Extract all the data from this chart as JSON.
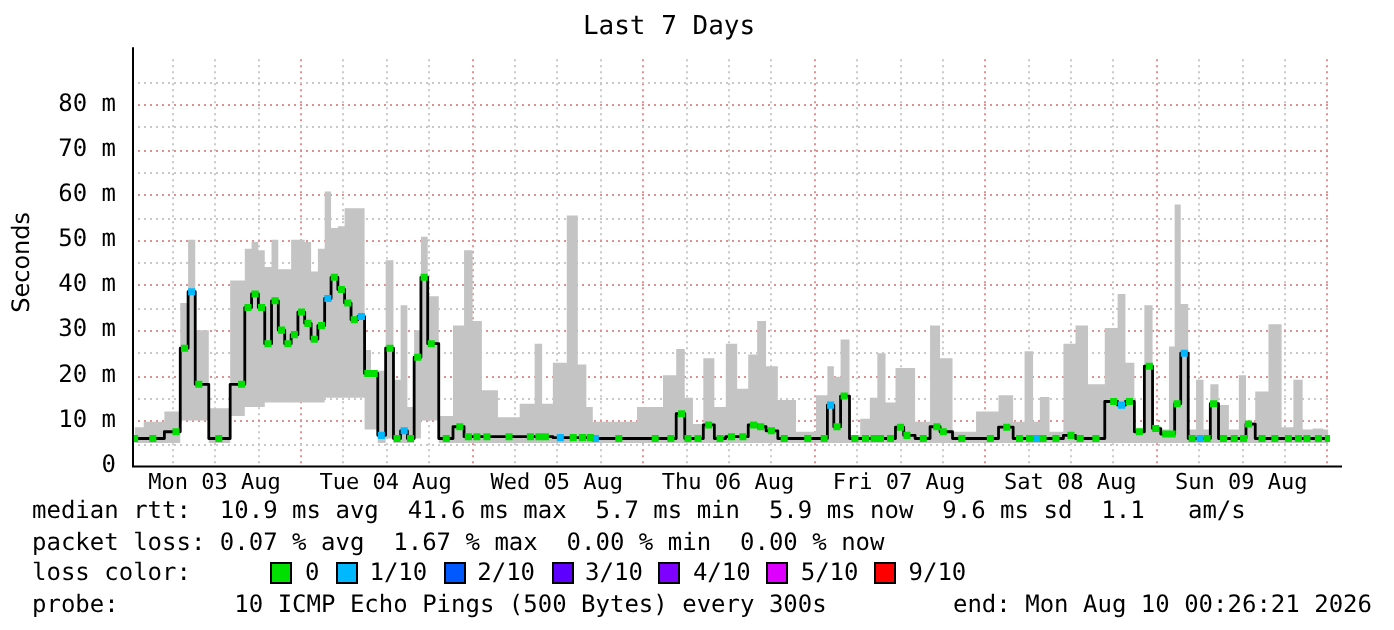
{
  "chart_data": {
    "type": "step",
    "title": "Last 7 Days",
    "ylabel": "Seconds",
    "legend_title": "loss color:",
    "legend": "bottom",
    "grid": true,
    "marker": "square",
    "xlim": [
      "2026-08-03T00:26",
      "2026-08-10T00:26"
    ],
    "xticks": [
      {
        "value": "2026-08-03T06:00",
        "label": null
      },
      {
        "value": "2026-08-03T12:00",
        "label": "Mon 03 Aug"
      },
      {
        "value": "2026-08-03T18:00",
        "label": null
      },
      {
        "value": "2026-08-04T00:00",
        "label": null
      },
      {
        "value": "2026-08-04T06:00",
        "label": null
      },
      {
        "value": "2026-08-04T12:00",
        "label": "Tue 04 Aug"
      },
      {
        "value": "2026-08-04T18:00",
        "label": null
      },
      {
        "value": "2026-08-05T00:00",
        "label": null
      },
      {
        "value": "2026-08-05T06:00",
        "label": null
      },
      {
        "value": "2026-08-05T12:00",
        "label": "Wed 05 Aug"
      },
      {
        "value": "2026-08-05T18:00",
        "label": null
      },
      {
        "value": "2026-08-06T00:00",
        "label": null
      },
      {
        "value": "2026-08-06T06:00",
        "label": null
      },
      {
        "value": "2026-08-06T12:00",
        "label": "Thu 06 Aug"
      },
      {
        "value": "2026-08-06T18:00",
        "label": null
      },
      {
        "value": "2026-08-07T00:00",
        "label": null
      },
      {
        "value": "2026-08-07T06:00",
        "label": null
      },
      {
        "value": "2026-08-07T12:00",
        "label": "Fri 07 Aug"
      },
      {
        "value": "2026-08-07T18:00",
        "label": null
      },
      {
        "value": "2026-08-08T00:00",
        "label": null
      },
      {
        "value": "2026-08-08T06:00",
        "label": null
      },
      {
        "value": "2026-08-08T12:00",
        "label": "Sat 08 Aug"
      },
      {
        "value": "2026-08-08T18:00",
        "label": null
      },
      {
        "value": "2026-08-09T00:00",
        "label": null
      },
      {
        "value": "2026-08-09T06:00",
        "label": null
      },
      {
        "value": "2026-08-09T12:00",
        "label": "Sun 09 Aug"
      },
      {
        "value": "2026-08-09T18:00",
        "label": null
      },
      {
        "value": "2026-08-10T00:00",
        "label": null
      }
    ],
    "ylim": [
      0,
      90
    ],
    "yticks": [
      {
        "value": 0,
        "label": "0"
      },
      {
        "value": 5,
        "label": null
      },
      {
        "value": 10,
        "label": "10 m"
      },
      {
        "value": 15,
        "label": null
      },
      {
        "value": 20,
        "label": "20 m"
      },
      {
        "value": 25,
        "label": null
      },
      {
        "value": 30,
        "label": "30 m"
      },
      {
        "value": 35,
        "label": null
      },
      {
        "value": 40,
        "label": "40 m"
      },
      {
        "value": 45,
        "label": null
      },
      {
        "value": 50,
        "label": "50 m"
      },
      {
        "value": 55,
        "label": null
      },
      {
        "value": 60,
        "label": "60 m"
      },
      {
        "value": 65,
        "label": null
      },
      {
        "value": 70,
        "label": "70 m"
      },
      {
        "value": 75,
        "label": null
      },
      {
        "value": 80,
        "label": "80 m"
      },
      {
        "value": 85,
        "label": null
      }
    ],
    "x": [
      "2026-08-03T00:48",
      "2026-08-03T03:21",
      "2026-08-03T06:36",
      "2026-08-03T07:48",
      "2026-08-03T08:48",
      "2026-08-03T09:48",
      "2026-08-03T12:36",
      "2026-08-03T15:48",
      "2026-08-03T16:42",
      "2026-08-03T17:42",
      "2026-08-03T18:36",
      "2026-08-03T19:30",
      "2026-08-03T20:30",
      "2026-08-03T21:24",
      "2026-08-03T22:18",
      "2026-08-03T23:12",
      "2026-08-04T00:12",
      "2026-08-04T01:06",
      "2026-08-04T02:00",
      "2026-08-04T03:00",
      "2026-08-04T03:54",
      "2026-08-04T04:48",
      "2026-08-04T05:48",
      "2026-08-04T06:42",
      "2026-08-04T07:36",
      "2026-08-04T08:36",
      "2026-08-04T09:30",
      "2026-08-04T10:24",
      "2026-08-04T11:24",
      "2026-08-04T12:36",
      "2026-08-04T13:36",
      "2026-08-04T14:36",
      "2026-08-04T15:30",
      "2026-08-04T16:30",
      "2026-08-04T17:24",
      "2026-08-04T18:24",
      "2026-08-04T20:30",
      "2026-08-04T22:24",
      "2026-08-04T23:36",
      "2026-08-05T00:48",
      "2026-08-05T02:12",
      "2026-08-05T05:18",
      "2026-08-05T08:18",
      "2026-08-05T09:30",
      "2026-08-05T10:24",
      "2026-08-05T12:30",
      "2026-08-05T14:18",
      "2026-08-05T15:36",
      "2026-08-05T16:42",
      "2026-08-05T17:24",
      "2026-08-05T20:42",
      "2026-08-06T01:48",
      "2026-08-06T04:00",
      "2026-08-06T05:30",
      "2026-08-06T06:24",
      "2026-08-06T07:48",
      "2026-08-06T09:18",
      "2026-08-06T10:54",
      "2026-08-06T12:30",
      "2026-08-06T14:06",
      "2026-08-06T15:36",
      "2026-08-06T16:36",
      "2026-08-06T18:06",
      "2026-08-06T19:54",
      "2026-08-06T23:12",
      "2026-08-07T01:30",
      "2026-08-07T02:24",
      "2026-08-07T03:18",
      "2026-08-07T04:18",
      "2026-08-07T05:48",
      "2026-08-07T07:18",
      "2026-08-07T08:30",
      "2026-08-07T09:24",
      "2026-08-07T10:48",
      "2026-08-07T12:12",
      "2026-08-07T13:06",
      "2026-08-07T15:24",
      "2026-08-07T17:18",
      "2026-08-07T18:12",
      "2026-08-07T20:48",
      "2026-08-08T00:48",
      "2026-08-08T03:06",
      "2026-08-08T04:54",
      "2026-08-08T06:18",
      "2026-08-08T07:18",
      "2026-08-08T08:12",
      "2026-08-08T10:00",
      "2026-08-08T12:06",
      "2026-08-08T13:24",
      "2026-08-08T15:36",
      "2026-08-08T18:06",
      "2026-08-08T19:12",
      "2026-08-08T20:18",
      "2026-08-08T21:42",
      "2026-08-08T23:06",
      "2026-08-09T00:00",
      "2026-08-09T01:24",
      "2026-08-09T02:18",
      "2026-08-09T03:00",
      "2026-08-09T04:00",
      "2026-08-09T05:06",
      "2026-08-09T06:12",
      "2026-08-09T07:12",
      "2026-08-09T08:06",
      "2026-08-09T09:30",
      "2026-08-09T11:00",
      "2026-08-09T12:18",
      "2026-08-09T13:00",
      "2026-08-09T14:54",
      "2026-08-09T16:42",
      "2026-08-09T18:36",
      "2026-08-09T20:00",
      "2026-08-09T21:12",
      "2026-08-09T22:48",
      "2026-08-10T00:12"
    ],
    "series": [
      {
        "color": "#000000",
        "marker": "none",
        "values": [
          6,
          6,
          7.5,
          26,
          38.5,
          18,
          6,
          18,
          35,
          38,
          35,
          27,
          36.5,
          30,
          27,
          29,
          34,
          31.5,
          28,
          31,
          37,
          41.7,
          39,
          36,
          32.3,
          33,
          20.4,
          20.4,
          6.7,
          26,
          6,
          7.7,
          6,
          24,
          41.7,
          27,
          6,
          8.6,
          6.4,
          6.4,
          6.4,
          6.4,
          6.4,
          6.4,
          6.4,
          6.2,
          6.2,
          6.2,
          6.2,
          6,
          6,
          6,
          6,
          11.5,
          6,
          6,
          9,
          6,
          6.4,
          6.4,
          9,
          8.6,
          7.7,
          6,
          6,
          6,
          13.4,
          8.6,
          15.4,
          6,
          6,
          6,
          6,
          6,
          8.5,
          6.7,
          6,
          8.6,
          7.5,
          6,
          6,
          8.5,
          6,
          6,
          6,
          6,
          6,
          6.7,
          6,
          6,
          14.2,
          13.4,
          14.2,
          7.5,
          22,
          8.2,
          7,
          7,
          13.7,
          24.9,
          6,
          6,
          6,
          13.7,
          6,
          6,
          6,
          9.2,
          6,
          6,
          6,
          6,
          6,
          6,
          6
        ],
        "lower": [
          5,
          5,
          5,
          10,
          10,
          10,
          5,
          11,
          13,
          13,
          13,
          14,
          14,
          14,
          14,
          14,
          14,
          14,
          14,
          14,
          15,
          15,
          15,
          15,
          15,
          15,
          8,
          8,
          5,
          6,
          5,
          5,
          5,
          6,
          10,
          10,
          5,
          5,
          5,
          5,
          5,
          5,
          5,
          5,
          5,
          5,
          5,
          5,
          5,
          5,
          5,
          5,
          5,
          5,
          5,
          5,
          5,
          5,
          5,
          5,
          5,
          5,
          5,
          5,
          5,
          5,
          5,
          5,
          5,
          5,
          5,
          5,
          5,
          5,
          5,
          5,
          5,
          5,
          5,
          5,
          5,
          5,
          5,
          5,
          5,
          5,
          5,
          5,
          5,
          5,
          5,
          5,
          5,
          5,
          5,
          5,
          5,
          5,
          5,
          5,
          5,
          5,
          5,
          5,
          5,
          5,
          5,
          5,
          5,
          5,
          5,
          5,
          5,
          5,
          5
        ],
        "upper": [
          8.5,
          9.7,
          12,
          36,
          50,
          30,
          12.7,
          41,
          48,
          49.5,
          47.7,
          44,
          50,
          43.5,
          43.5,
          50,
          50,
          49.5,
          43,
          48,
          60.7,
          52.6,
          53,
          57,
          57,
          57,
          25.6,
          21,
          21,
          45.5,
          19,
          35.5,
          13,
          30,
          50.7,
          37.5,
          11,
          31,
          47.7,
          32,
          16.7,
          10.7,
          13.7,
          27,
          13.7,
          22.8,
          55.4,
          22.4,
          13,
          9.7,
          9.7,
          13,
          20,
          25.8,
          15,
          9.2,
          23.8,
          13,
          27,
          17,
          24.6,
          32,
          22,
          14.5,
          7.5,
          15.6,
          22,
          19.7,
          27.9,
          6.7,
          10.4,
          15,
          24.9,
          14,
          21.6,
          21.6,
          9.7,
          31,
          23.8,
          7.5,
          12,
          15.6,
          9.7,
          25.3,
          9.7,
          15.2,
          7.5,
          27,
          31,
          18,
          30.5,
          38,
          22.8,
          8.2,
          35.5,
          8.7,
          8,
          26.4,
          57.8,
          35.8,
          8,
          19,
          8,
          18,
          13.4,
          8,
          20,
          9.7,
          16.4,
          31.3,
          8.5,
          19,
          8,
          8.2,
          8
        ]
      },
      {
        "type": "scatter",
        "name": "0",
        "color": "#00e000",
        "values": [
          6,
          6,
          7.5,
          26,
          null,
          18,
          6,
          18,
          35,
          38,
          35,
          27,
          36.5,
          30,
          27,
          29,
          34,
          31.5,
          28,
          31,
          null,
          41.7,
          39,
          36,
          32.3,
          null,
          20.4,
          20.4,
          null,
          26,
          6,
          null,
          6,
          24,
          41.7,
          27,
          6,
          8.6,
          6.4,
          6.4,
          6.4,
          6.4,
          6.4,
          6.4,
          6.4,
          null,
          6.2,
          6.2,
          6.2,
          null,
          6,
          6,
          6,
          11.5,
          6,
          6,
          9,
          6,
          6.4,
          6.4,
          9,
          8.6,
          7.7,
          6,
          6,
          6,
          null,
          8.6,
          15.4,
          6,
          6,
          6,
          6,
          6,
          8.5,
          6.7,
          6,
          8.6,
          7.5,
          6,
          6,
          8.5,
          6,
          6,
          null,
          6,
          6,
          6.7,
          6,
          6,
          14.2,
          null,
          14.2,
          7.5,
          22,
          8.2,
          7,
          7,
          13.7,
          null,
          6,
          null,
          6,
          13.7,
          6,
          6,
          6,
          9.2,
          6,
          6,
          6,
          6,
          6,
          6,
          6
        ]
      },
      {
        "type": "scatter",
        "name": "1/10",
        "color": "#00b8ff",
        "values": [
          null,
          null,
          null,
          null,
          38.5,
          null,
          null,
          null,
          null,
          null,
          null,
          null,
          null,
          null,
          null,
          null,
          null,
          null,
          null,
          null,
          37,
          null,
          null,
          null,
          null,
          33,
          null,
          null,
          6.7,
          null,
          null,
          7.7,
          null,
          null,
          null,
          null,
          null,
          null,
          null,
          null,
          null,
          null,
          null,
          null,
          null,
          6.2,
          null,
          null,
          null,
          6,
          null,
          null,
          null,
          null,
          null,
          null,
          null,
          null,
          null,
          null,
          null,
          null,
          null,
          null,
          null,
          null,
          13.4,
          null,
          null,
          null,
          null,
          null,
          null,
          null,
          null,
          null,
          null,
          null,
          null,
          null,
          null,
          null,
          null,
          null,
          6,
          null,
          null,
          null,
          null,
          null,
          null,
          13.4,
          null,
          null,
          null,
          null,
          null,
          null,
          null,
          24.9,
          null,
          6,
          null,
          null,
          null,
          null,
          null,
          null,
          null,
          null,
          null,
          null,
          null,
          null,
          null
        ]
      },
      {
        "type": "scatter",
        "name": "2/10",
        "color": "#0059ff",
        "values": [
          null,
          null,
          null,
          null,
          null,
          null,
          null,
          null,
          null,
          null,
          null,
          null,
          null,
          null,
          null,
          null,
          null,
          null,
          null,
          null,
          null,
          null,
          null,
          null,
          null,
          null,
          null,
          null,
          null,
          null,
          null,
          null,
          null,
          null,
          null,
          null,
          null,
          null,
          null,
          null,
          null,
          null,
          null,
          null,
          null,
          null,
          null,
          null,
          null,
          null,
          null,
          null,
          null,
          null,
          null,
          null,
          null,
          null,
          null,
          null,
          null,
          null,
          null,
          null,
          null,
          null,
          null,
          null,
          null,
          null,
          null,
          null,
          null,
          null,
          null,
          null,
          null,
          null,
          null,
          null,
          null,
          null,
          null,
          null,
          null,
          null,
          null,
          null,
          null,
          null,
          null,
          null,
          null,
          null,
          null,
          null,
          null,
          null,
          null,
          null,
          null,
          null,
          null,
          null,
          null,
          null,
          null,
          null,
          null,
          null,
          null,
          null,
          null,
          null,
          null
        ]
      },
      {
        "type": "scatter",
        "name": "3/10",
        "color": "#5e00ff",
        "values": [
          null,
          null,
          null,
          null,
          null,
          null,
          null,
          null,
          null,
          null,
          null,
          null,
          null,
          null,
          null,
          null,
          null,
          null,
          null,
          null,
          null,
          null,
          null,
          null,
          null,
          null,
          null,
          null,
          null,
          null,
          null,
          null,
          null,
          null,
          null,
          null,
          null,
          null,
          null,
          null,
          null,
          null,
          null,
          null,
          null,
          null,
          null,
          null,
          null,
          null,
          null,
          null,
          null,
          null,
          null,
          null,
          null,
          null,
          null,
          null,
          null,
          null,
          null,
          null,
          null,
          null,
          null,
          null,
          null,
          null,
          null,
          null,
          null,
          null,
          null,
          null,
          null,
          null,
          null,
          null,
          null,
          null,
          null,
          null,
          null,
          null,
          null,
          null,
          null,
          null,
          null,
          null,
          null,
          null,
          null,
          null,
          null,
          null,
          null,
          null,
          null,
          null,
          null,
          null,
          null,
          null,
          null,
          null,
          null,
          null,
          null,
          null,
          null,
          null,
          null
        ]
      },
      {
        "type": "scatter",
        "name": "4/10",
        "color": "#7e00ff",
        "values": [
          null,
          null,
          null,
          null,
          null,
          null,
          null,
          null,
          null,
          null,
          null,
          null,
          null,
          null,
          null,
          null,
          null,
          null,
          null,
          null,
          null,
          null,
          null,
          null,
          null,
          null,
          null,
          null,
          null,
          null,
          null,
          null,
          null,
          null,
          null,
          null,
          null,
          null,
          null,
          null,
          null,
          null,
          null,
          null,
          null,
          null,
          null,
          null,
          null,
          null,
          null,
          null,
          null,
          null,
          null,
          null,
          null,
          null,
          null,
          null,
          null,
          null,
          null,
          null,
          null,
          null,
          null,
          null,
          null,
          null,
          null,
          null,
          null,
          null,
          null,
          null,
          null,
          null,
          null,
          null,
          null,
          null,
          null,
          null,
          null,
          null,
          null,
          null,
          null,
          null,
          null,
          null,
          null,
          null,
          null,
          null,
          null,
          null,
          null,
          null,
          null,
          null,
          null,
          null,
          null,
          null,
          null,
          null,
          null,
          null,
          null,
          null,
          null,
          null,
          null
        ]
      },
      {
        "type": "scatter",
        "name": "5/10",
        "color": "#dd00ff",
        "values": [
          null,
          null,
          null,
          null,
          null,
          null,
          null,
          null,
          null,
          null,
          null,
          null,
          null,
          null,
          null,
          null,
          null,
          null,
          null,
          null,
          null,
          null,
          null,
          null,
          null,
          null,
          null,
          null,
          null,
          null,
          null,
          null,
          null,
          null,
          null,
          null,
          null,
          null,
          null,
          null,
          null,
          null,
          null,
          null,
          null,
          null,
          null,
          null,
          null,
          null,
          null,
          null,
          null,
          null,
          null,
          null,
          null,
          null,
          null,
          null,
          null,
          null,
          null,
          null,
          null,
          null,
          null,
          null,
          null,
          null,
          null,
          null,
          null,
          null,
          null,
          null,
          null,
          null,
          null,
          null,
          null,
          null,
          null,
          null,
          null,
          null,
          null,
          null,
          null,
          null,
          null,
          null,
          null,
          null,
          null,
          null,
          null,
          null,
          null,
          null,
          null,
          null,
          null,
          null,
          null,
          null,
          null,
          null,
          null,
          null,
          null,
          null,
          null,
          null,
          null
        ]
      },
      {
        "type": "scatter",
        "name": "9/10",
        "color": "#ff0000",
        "values": [
          null,
          null,
          null,
          null,
          null,
          null,
          null,
          null,
          null,
          null,
          null,
          null,
          null,
          null,
          null,
          null,
          null,
          null,
          null,
          null,
          null,
          null,
          null,
          null,
          null,
          null,
          null,
          null,
          null,
          null,
          null,
          null,
          null,
          null,
          null,
          null,
          null,
          null,
          null,
          null,
          null,
          null,
          null,
          null,
          null,
          null,
          null,
          null,
          null,
          null,
          null,
          null,
          null,
          null,
          null,
          null,
          null,
          null,
          null,
          null,
          null,
          null,
          null,
          null,
          null,
          null,
          null,
          null,
          null,
          null,
          null,
          null,
          null,
          null,
          null,
          null,
          null,
          null,
          null,
          null,
          null,
          null,
          null,
          null,
          null,
          null,
          null,
          null,
          null,
          null,
          null,
          null,
          null,
          null,
          null,
          null,
          null,
          null,
          null,
          null,
          null,
          null,
          null,
          null,
          null,
          null,
          null,
          null,
          null,
          null,
          null,
          null,
          null,
          null,
          null
        ]
      }
    ],
    "annotations": [
      "median rtt:  10.9 ms avg  41.6 ms max  5.7 ms min  5.9 ms now  9.6 ms sd  1.1   am/s",
      "packet loss: 0.07 % avg  1.67 % max  0.00 % min  0.00 % now",
      "probe:        10 ICMP Echo Pings (500 Bytes) every 300s",
      "end: Mon Aug 10 00:26:21 2026"
    ]
  }
}
